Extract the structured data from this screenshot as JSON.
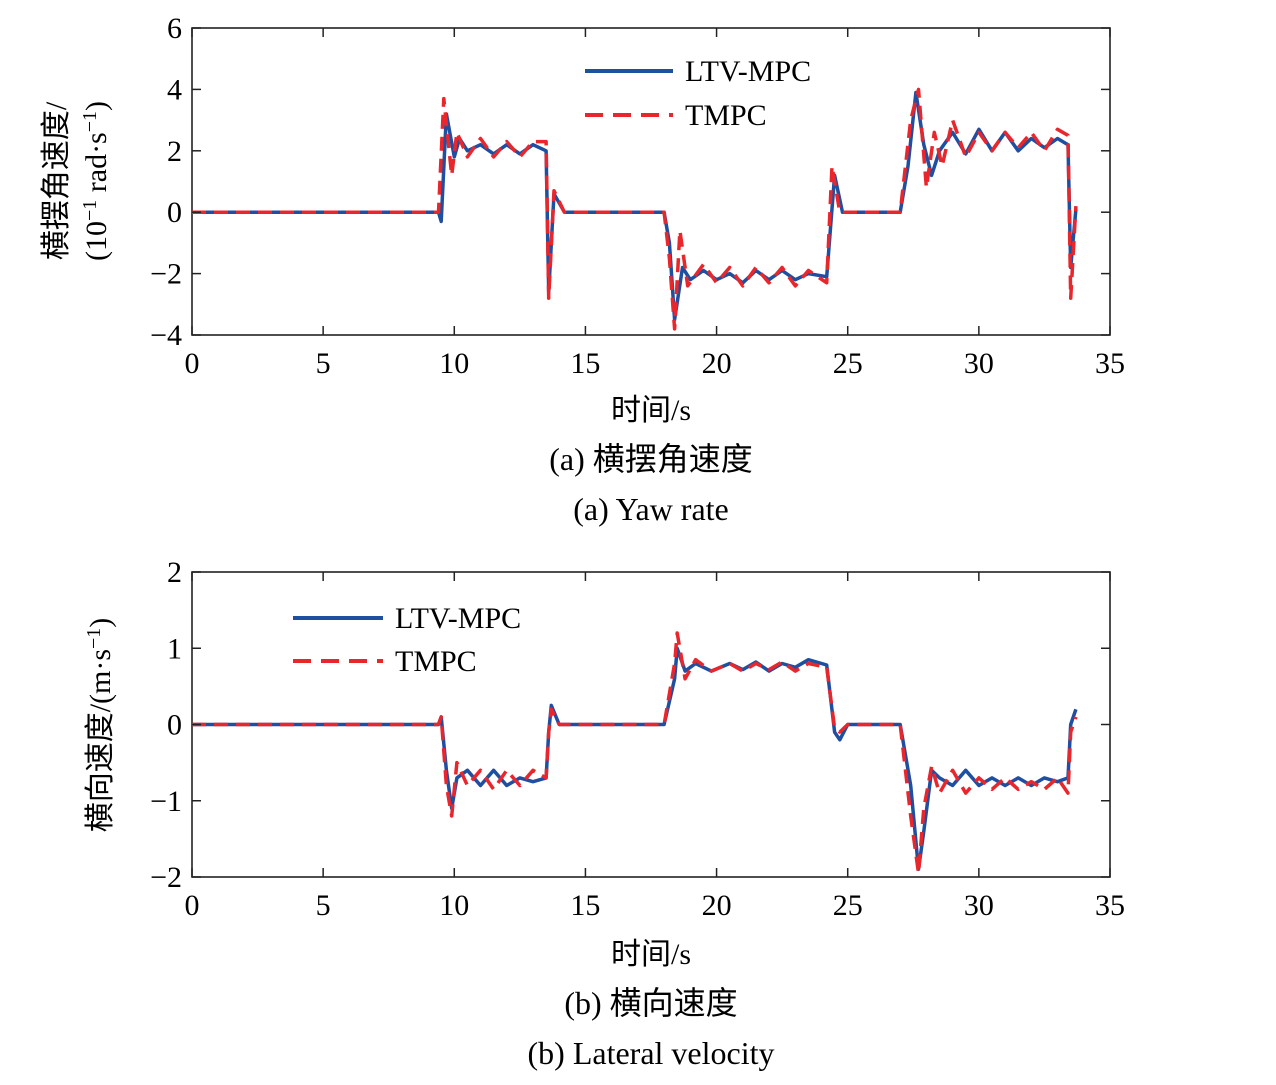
{
  "panels": [
    {
      "id": "a",
      "ylabel_line1": "横摆角速度/",
      "ylabel_line2_pre": "(10",
      "ylabel_line2_sup": "−1",
      "ylabel_line2_mid": " rad·s",
      "ylabel_line2_sup2": "−1",
      "ylabel_line2_post": ")",
      "xlabel": "时间/s",
      "caption_cn": "(a) 横摆角速度",
      "caption_en": "(a) Yaw rate",
      "legend": [
        "LTV-MPC",
        "TMPC"
      ]
    },
    {
      "id": "b",
      "ylabel_pre": "横向速度/(m·s",
      "ylabel_sup": "−1",
      "ylabel_post": ")",
      "xlabel": "时间/s",
      "caption_cn": "(b) 横向速度",
      "caption_en": "(b) Lateral velocity",
      "legend": [
        "LTV-MPC",
        "TMPC"
      ]
    }
  ],
  "colors": {
    "LTV-MPC": "#1f4fa0",
    "TMPC": "#e8262b"
  },
  "chart_data": [
    {
      "type": "line",
      "xlim": [
        0,
        35
      ],
      "ylim": [
        -4,
        6
      ],
      "xticks": [
        0,
        5,
        10,
        15,
        20,
        25,
        30,
        35
      ],
      "yticks": [
        -4,
        -2,
        0,
        2,
        4,
        6
      ],
      "ytick_labels": [
        "−4",
        "−2",
        "0",
        "2",
        "4",
        "6"
      ],
      "grid": false,
      "legend_position": "top-center",
      "series": [
        {
          "name": "LTV-MPC",
          "style": "solid",
          "points": [
            [
              0,
              0
            ],
            [
              9.4,
              0
            ],
            [
              9.5,
              -0.3
            ],
            [
              9.7,
              3.2
            ],
            [
              10.0,
              1.8
            ],
            [
              10.2,
              2.4
            ],
            [
              10.5,
              2.0
            ],
            [
              11,
              2.2
            ],
            [
              11.5,
              1.9
            ],
            [
              12,
              2.2
            ],
            [
              12.5,
              1.9
            ],
            [
              13,
              2.2
            ],
            [
              13.5,
              2.0
            ],
            [
              13.6,
              -2.6
            ],
            [
              13.8,
              0.6
            ],
            [
              14.2,
              0.0
            ],
            [
              18.0,
              0.0
            ],
            [
              18.2,
              -1.0
            ],
            [
              18.4,
              -3.5
            ],
            [
              18.7,
              -1.8
            ],
            [
              19.0,
              -2.2
            ],
            [
              19.5,
              -1.9
            ],
            [
              20,
              -2.2
            ],
            [
              20.5,
              -2.0
            ],
            [
              21,
              -2.3
            ],
            [
              21.5,
              -1.9
            ],
            [
              22,
              -2.2
            ],
            [
              22.5,
              -1.9
            ],
            [
              23,
              -2.2
            ],
            [
              23.5,
              -2.0
            ],
            [
              24.2,
              -2.1
            ],
            [
              24.5,
              1.2
            ],
            [
              24.8,
              0.0
            ],
            [
              27.0,
              0.0
            ],
            [
              27.3,
              1.5
            ],
            [
              27.6,
              3.9
            ],
            [
              27.9,
              2.2
            ],
            [
              28.2,
              1.2
            ],
            [
              28.5,
              2.0
            ],
            [
              29,
              2.6
            ],
            [
              29.5,
              1.9
            ],
            [
              30,
              2.7
            ],
            [
              30.5,
              2.0
            ],
            [
              31,
              2.6
            ],
            [
              31.5,
              2.0
            ],
            [
              32,
              2.4
            ],
            [
              32.5,
              2.1
            ],
            [
              33,
              2.4
            ],
            [
              33.4,
              2.2
            ],
            [
              33.5,
              -1.8
            ],
            [
              33.7,
              0.1
            ]
          ]
        },
        {
          "name": "TMPC",
          "style": "dashed",
          "points": [
            [
              0,
              0
            ],
            [
              9.4,
              0
            ],
            [
              9.6,
              3.7
            ],
            [
              9.9,
              1.2
            ],
            [
              10.1,
              2.6
            ],
            [
              10.5,
              1.8
            ],
            [
              11,
              2.4
            ],
            [
              11.5,
              1.8
            ],
            [
              12,
              2.3
            ],
            [
              12.5,
              1.8
            ],
            [
              13,
              2.3
            ],
            [
              13.5,
              2.3
            ],
            [
              13.6,
              -2.8
            ],
            [
              13.8,
              0.7
            ],
            [
              14.2,
              0.0
            ],
            [
              18.0,
              0.0
            ],
            [
              18.2,
              -1.5
            ],
            [
              18.4,
              -3.8
            ],
            [
              18.6,
              -0.6
            ],
            [
              18.9,
              -2.4
            ],
            [
              19.5,
              -1.7
            ],
            [
              20,
              -2.3
            ],
            [
              20.5,
              -1.8
            ],
            [
              21,
              -2.4
            ],
            [
              21.5,
              -1.8
            ],
            [
              22,
              -2.3
            ],
            [
              22.5,
              -1.8
            ],
            [
              23,
              -2.4
            ],
            [
              23.5,
              -1.9
            ],
            [
              24.2,
              -2.3
            ],
            [
              24.4,
              1.5
            ],
            [
              24.7,
              0.0
            ],
            [
              27.0,
              0.0
            ],
            [
              27.4,
              3.0
            ],
            [
              27.7,
              4.0
            ],
            [
              28.0,
              0.8
            ],
            [
              28.3,
              2.6
            ],
            [
              28.6,
              1.5
            ],
            [
              29,
              3.0
            ],
            [
              29.5,
              1.8
            ],
            [
              30,
              2.6
            ],
            [
              30.5,
              2.0
            ],
            [
              31,
              2.6
            ],
            [
              31.5,
              2.1
            ],
            [
              32,
              2.6
            ],
            [
              32.5,
              2.0
            ],
            [
              33,
              2.7
            ],
            [
              33.4,
              2.5
            ],
            [
              33.5,
              -2.8
            ],
            [
              33.7,
              0.2
            ]
          ]
        }
      ]
    },
    {
      "type": "line",
      "xlim": [
        0,
        35
      ],
      "ylim": [
        -2,
        2
      ],
      "xticks": [
        0,
        5,
        10,
        15,
        20,
        25,
        30,
        35
      ],
      "yticks": [
        -2,
        -1,
        0,
        1,
        2
      ],
      "ytick_labels": [
        "−2",
        "−1",
        "0",
        "1",
        "2"
      ],
      "grid": false,
      "legend_position": "top-left",
      "series": [
        {
          "name": "LTV-MPC",
          "style": "solid",
          "points": [
            [
              0,
              0
            ],
            [
              9.4,
              0
            ],
            [
              9.5,
              0.1
            ],
            [
              9.7,
              -0.6
            ],
            [
              9.9,
              -1.1
            ],
            [
              10.1,
              -0.7
            ],
            [
              10.5,
              -0.6
            ],
            [
              11,
              -0.8
            ],
            [
              11.5,
              -0.6
            ],
            [
              12,
              -0.8
            ],
            [
              12.5,
              -0.7
            ],
            [
              13,
              -0.75
            ],
            [
              13.5,
              -0.7
            ],
            [
              13.6,
              -0.1
            ],
            [
              13.7,
              0.25
            ],
            [
              14.0,
              0.0
            ],
            [
              18.0,
              0.0
            ],
            [
              18.4,
              0.6
            ],
            [
              18.5,
              1.0
            ],
            [
              18.8,
              0.7
            ],
            [
              19.2,
              0.8
            ],
            [
              19.8,
              0.7
            ],
            [
              20.5,
              0.8
            ],
            [
              21,
              0.72
            ],
            [
              21.5,
              0.82
            ],
            [
              22,
              0.7
            ],
            [
              22.5,
              0.8
            ],
            [
              23,
              0.75
            ],
            [
              23.5,
              0.85
            ],
            [
              24.2,
              0.78
            ],
            [
              24.5,
              -0.1
            ],
            [
              24.7,
              -0.2
            ],
            [
              25.0,
              0.0
            ],
            [
              27.0,
              0.0
            ],
            [
              27.4,
              -0.8
            ],
            [
              27.7,
              -1.9
            ],
            [
              27.9,
              -1.4
            ],
            [
              28.2,
              -0.6
            ],
            [
              28.5,
              -0.7
            ],
            [
              29,
              -0.8
            ],
            [
              29.5,
              -0.6
            ],
            [
              30,
              -0.8
            ],
            [
              30.5,
              -0.7
            ],
            [
              31,
              -0.8
            ],
            [
              31.5,
              -0.7
            ],
            [
              32,
              -0.8
            ],
            [
              32.5,
              -0.7
            ],
            [
              33,
              -0.75
            ],
            [
              33.4,
              -0.7
            ],
            [
              33.5,
              0.0
            ],
            [
              33.7,
              0.2
            ]
          ]
        },
        {
          "name": "TMPC",
          "style": "dashed",
          "points": [
            [
              0,
              0
            ],
            [
              9.4,
              0
            ],
            [
              9.5,
              0.1
            ],
            [
              9.7,
              -0.8
            ],
            [
              9.9,
              -1.2
            ],
            [
              10.1,
              -0.5
            ],
            [
              10.5,
              -0.8
            ],
            [
              11,
              -0.6
            ],
            [
              11.5,
              -0.85
            ],
            [
              12,
              -0.6
            ],
            [
              12.5,
              -0.8
            ],
            [
              13,
              -0.6
            ],
            [
              13.5,
              -0.7
            ],
            [
              13.6,
              -0.1
            ],
            [
              13.7,
              0.2
            ],
            [
              14.0,
              0.0
            ],
            [
              18.0,
              0.0
            ],
            [
              18.4,
              0.8
            ],
            [
              18.5,
              1.2
            ],
            [
              18.8,
              0.6
            ],
            [
              19.2,
              0.85
            ],
            [
              19.8,
              0.7
            ],
            [
              20.5,
              0.8
            ],
            [
              21,
              0.7
            ],
            [
              21.5,
              0.8
            ],
            [
              22,
              0.72
            ],
            [
              22.5,
              0.82
            ],
            [
              23,
              0.7
            ],
            [
              23.5,
              0.8
            ],
            [
              24.2,
              0.75
            ],
            [
              24.5,
              -0.05
            ],
            [
              24.7,
              -0.1
            ],
            [
              25.0,
              0.0
            ],
            [
              27.0,
              0.0
            ],
            [
              27.4,
              -1.2
            ],
            [
              27.7,
              -1.95
            ],
            [
              27.9,
              -1.1
            ],
            [
              28.2,
              -0.55
            ],
            [
              28.5,
              -0.9
            ],
            [
              29,
              -0.6
            ],
            [
              29.5,
              -0.9
            ],
            [
              30,
              -0.7
            ],
            [
              30.5,
              -0.85
            ],
            [
              31,
              -0.7
            ],
            [
              31.5,
              -0.85
            ],
            [
              32,
              -0.75
            ],
            [
              32.5,
              -0.85
            ],
            [
              33,
              -0.7
            ],
            [
              33.4,
              -0.9
            ],
            [
              33.5,
              -0.1
            ],
            [
              33.7,
              0.1
            ]
          ]
        }
      ]
    }
  ]
}
